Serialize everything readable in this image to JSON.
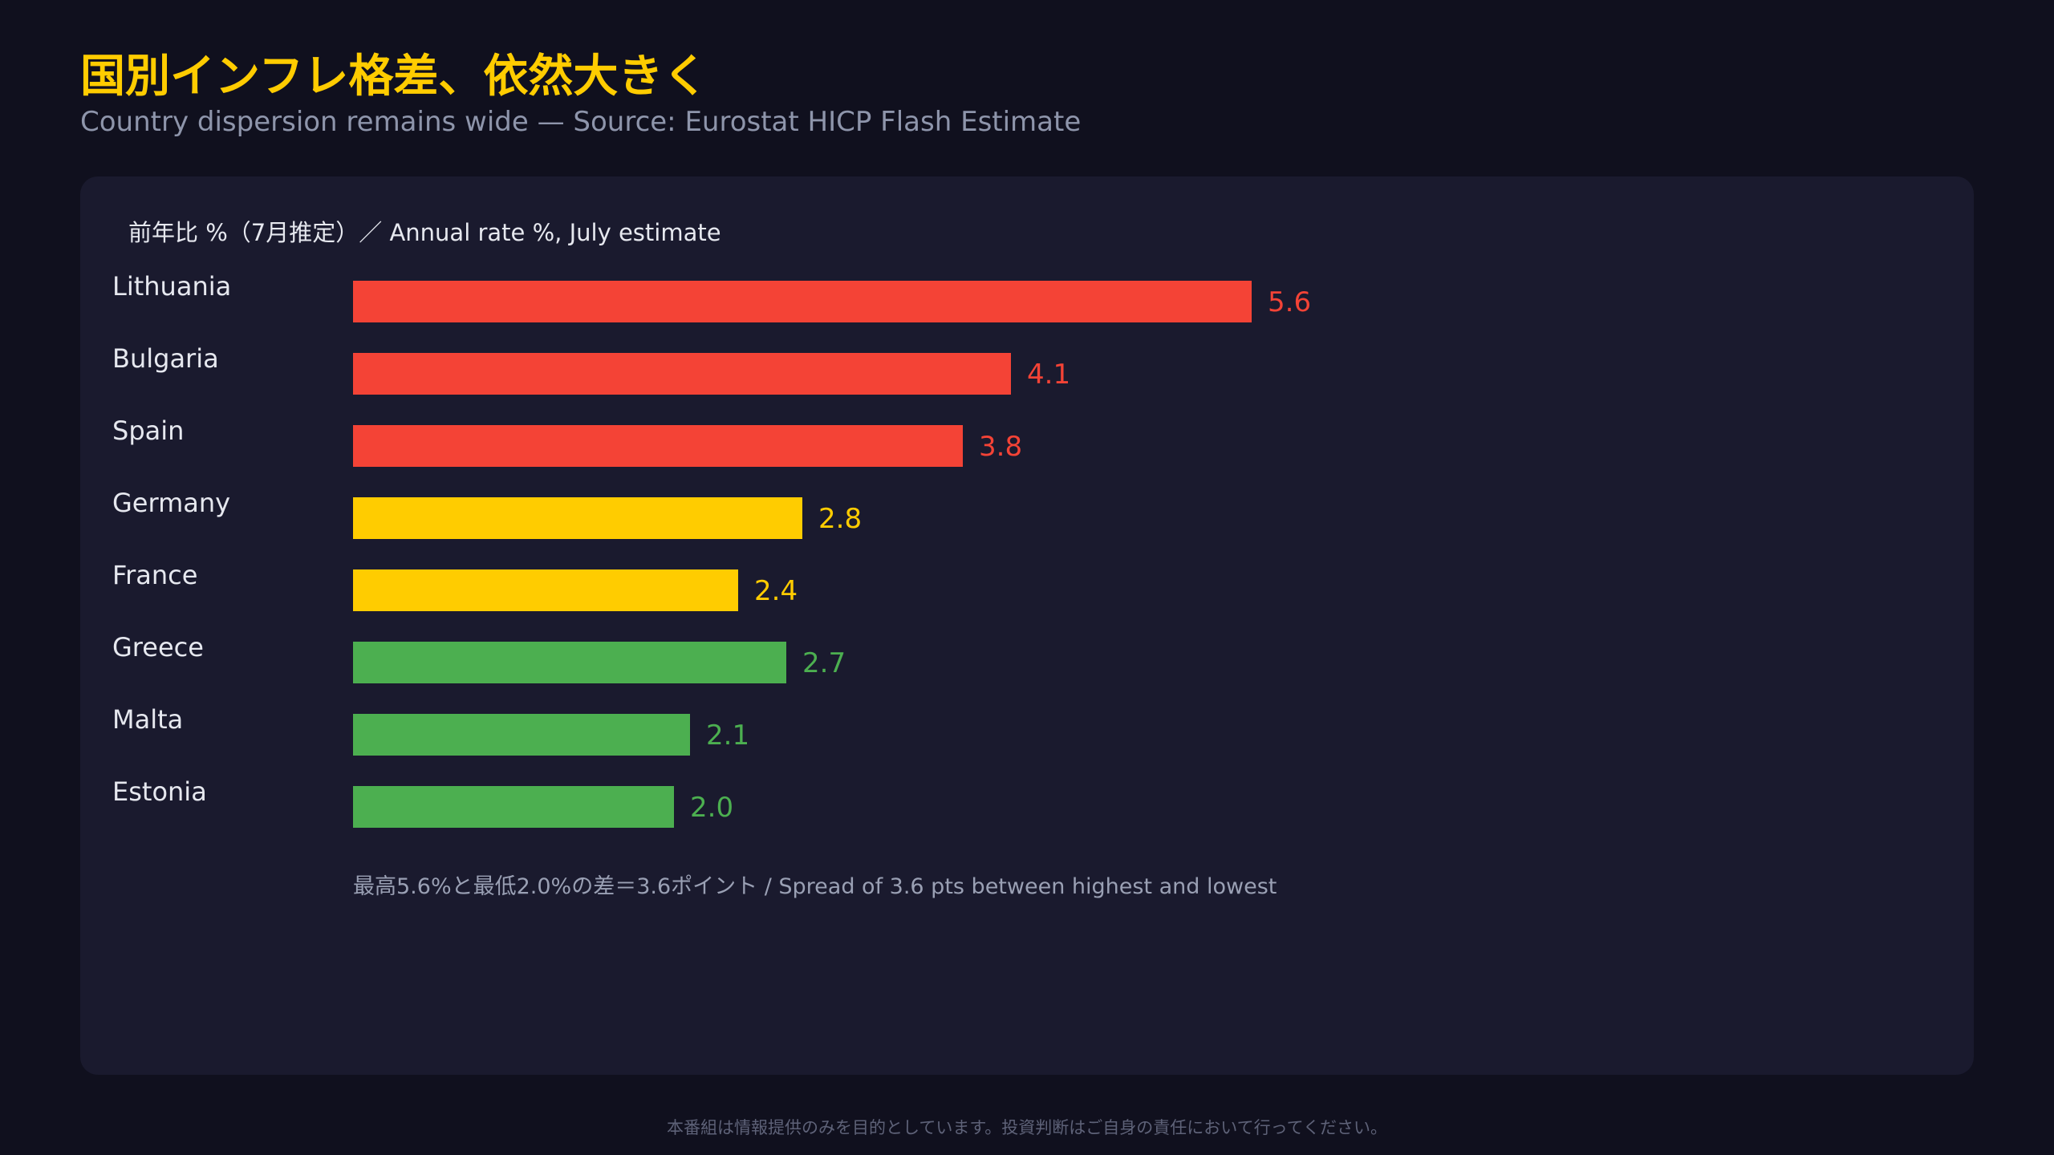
{
  "header": {
    "title": "国別インフレ格差、依然大きく",
    "subtitle": "Country dispersion remains wide — Source: Eurostat HICP Flash Estimate"
  },
  "panel": {
    "label": "前年比 %（7月推定）／ Annual rate %, July estimate",
    "footnote": "最高5.6%と最低2.0%の差＝3.6ポイント / Spread of 3.6 pts between highest and lowest"
  },
  "disclaimer": "本番組は情報提供のみを目的としています。投資判断はご自身の責任において行ってください。",
  "colors": {
    "background": "#10101e",
    "card": "#1a1a2e",
    "title": "#ffcc00",
    "red": "#f44336",
    "yellow": "#ffcc00",
    "green": "#4caf50"
  },
  "chart_data": {
    "type": "bar",
    "orientation": "horizontal",
    "categories": [
      "Lithuania",
      "Bulgaria",
      "Spain",
      "Germany",
      "France",
      "Greece",
      "Malta",
      "Estonia"
    ],
    "values": [
      5.6,
      4.1,
      3.8,
      2.8,
      2.4,
      2.7,
      2.1,
      2.0
    ],
    "value_labels": [
      "5.6",
      "4.1",
      "3.8",
      "2.8",
      "2.4",
      "2.7",
      "2.1",
      "2.0"
    ],
    "bar_colors": [
      "#f44336",
      "#f44336",
      "#f44336",
      "#ffcc00",
      "#ffcc00",
      "#4caf50",
      "#4caf50",
      "#4caf50"
    ],
    "xlim": [
      0,
      5.6
    ],
    "grid": false,
    "legend": false
  }
}
